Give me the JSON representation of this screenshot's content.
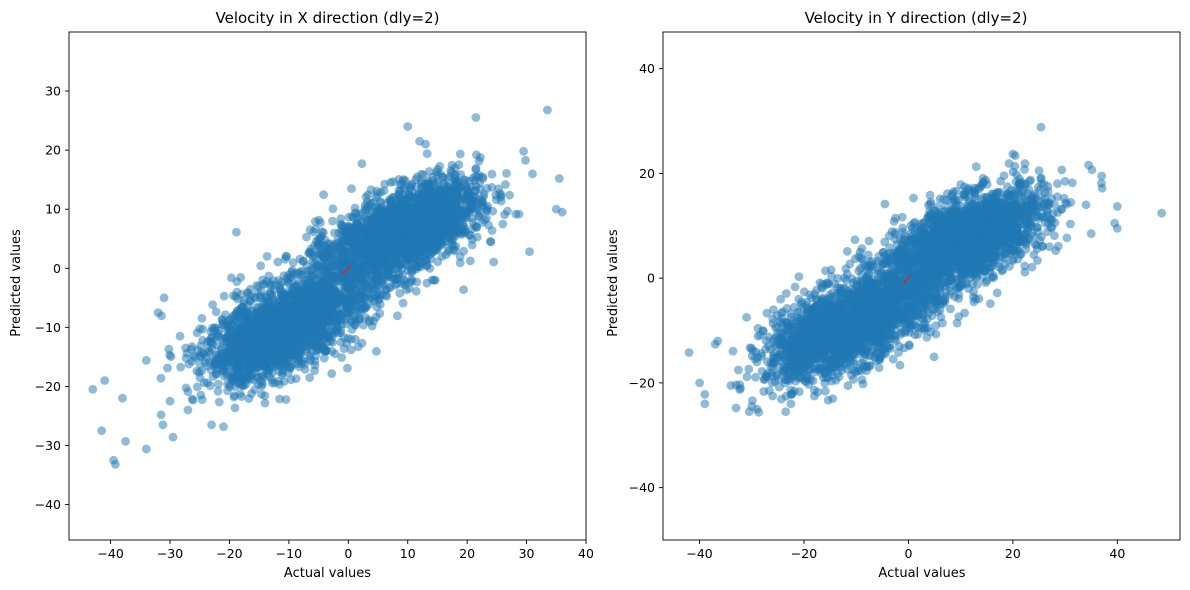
{
  "chart_data": [
    {
      "type": "scatter",
      "title": "Velocity in X direction (dly=2)",
      "xlabel": "Actual values",
      "ylabel": "Predicted values",
      "xlim": [
        -47,
        40
      ],
      "ylim": [
        -46,
        40
      ],
      "xticks": [
        -40,
        -30,
        -20,
        -10,
        0,
        10,
        20,
        30,
        40
      ],
      "yticks": [
        -40,
        -30,
        -20,
        -10,
        0,
        10,
        20,
        30
      ],
      "xtick_labels": [
        "−40",
        "−30",
        "−20",
        "−10",
        "0",
        "10",
        "20",
        "30",
        "40"
      ],
      "ytick_labels": [
        "−40",
        "−30",
        "−20",
        "−10",
        "0",
        "10",
        "20",
        "30"
      ],
      "point_color": "#1f77b4",
      "point_alpha": 0.5,
      "line_color": "#d62728",
      "ref_line": {
        "x": [
          -1,
          0.5
        ],
        "y": [
          -1,
          0.5
        ]
      },
      "clusters": [
        {
          "cx": -12,
          "cy": -11,
          "sx": 6,
          "sy": 4,
          "rho": 0.55,
          "n": 1700
        },
        {
          "cx": 10,
          "cy": 7,
          "sx": 6,
          "sy": 4,
          "rho": 0.55,
          "n": 1700
        },
        {
          "cx": -1,
          "cy": -2,
          "sx": 9,
          "sy": 7,
          "rho": 0.7,
          "n": 900
        }
      ],
      "points": [
        {
          "x": -43,
          "y": -20.5
        },
        {
          "x": -41,
          "y": -19
        },
        {
          "x": -41.5,
          "y": -27.5
        },
        {
          "x": -39.5,
          "y": -32.5
        },
        {
          "x": -39.2,
          "y": -33.2
        },
        {
          "x": -38,
          "y": -22
        },
        {
          "x": -37.5,
          "y": -29.3
        },
        {
          "x": -34,
          "y": -30.6
        },
        {
          "x": -31.5,
          "y": -24.8
        },
        {
          "x": -31.2,
          "y": -26.5
        },
        {
          "x": -30,
          "y": -22.5
        },
        {
          "x": -29.5,
          "y": -28.6
        },
        {
          "x": -31,
          "y": -5
        },
        {
          "x": -32,
          "y": -7.5
        },
        {
          "x": -34,
          "y": -15.6
        },
        {
          "x": -27,
          "y": -24
        },
        {
          "x": -23,
          "y": -26.5
        },
        {
          "x": -21,
          "y": -26.8
        },
        {
          "x": 10,
          "y": 24
        },
        {
          "x": 12,
          "y": 21.5
        },
        {
          "x": 13,
          "y": 21
        },
        {
          "x": 33.5,
          "y": 26.8
        },
        {
          "x": 29.5,
          "y": 19.8
        },
        {
          "x": 31,
          "y": 16
        },
        {
          "x": 35.5,
          "y": 15.2
        },
        {
          "x": 35,
          "y": 10
        },
        {
          "x": 36,
          "y": 9.5
        },
        {
          "x": 30.5,
          "y": 2.8
        },
        {
          "x": 26,
          "y": 7.5
        },
        {
          "x": 24,
          "y": 4.5
        }
      ]
    },
    {
      "type": "scatter",
      "title": "Velocity in Y direction (dly=2)",
      "xlabel": "Actual values",
      "ylabel": "Predicted values",
      "xlim": [
        -47,
        52
      ],
      "ylim": [
        -50,
        47
      ],
      "xticks": [
        -40,
        -20,
        0,
        20,
        40
      ],
      "yticks": [
        -40,
        -20,
        0,
        20,
        40
      ],
      "xtick_labels": [
        "−40",
        "−20",
        "0",
        "20",
        "40"
      ],
      "ytick_labels": [
        "−40",
        "−20",
        "0",
        "20",
        "40"
      ],
      "point_color": "#1f77b4",
      "point_alpha": 0.5,
      "line_color": "#d62728",
      "ref_line": {
        "x": [
          -1,
          0.5
        ],
        "y": [
          -1,
          0.5
        ]
      },
      "clusters": [
        {
          "cx": -13,
          "cy": -10,
          "sx": 7,
          "sy": 4.5,
          "rho": 0.55,
          "n": 1700
        },
        {
          "cx": 12,
          "cy": 8,
          "sx": 7,
          "sy": 4.5,
          "rho": 0.55,
          "n": 1700
        },
        {
          "cx": 0,
          "cy": -1,
          "sx": 10,
          "sy": 7.5,
          "rho": 0.7,
          "n": 900
        }
      ],
      "points": [
        {
          "x": -42,
          "y": -14.2
        },
        {
          "x": -40,
          "y": -20
        },
        {
          "x": -39,
          "y": -24
        },
        {
          "x": -39,
          "y": -22.2
        },
        {
          "x": -37,
          "y": -12.6
        },
        {
          "x": -36.5,
          "y": -12
        },
        {
          "x": -34,
          "y": -20.5
        },
        {
          "x": -33,
          "y": -24.8
        },
        {
          "x": -30.5,
          "y": -25.5
        },
        {
          "x": -30,
          "y": -24.5
        },
        {
          "x": -29,
          "y": -25
        },
        {
          "x": -26,
          "y": -22.5
        },
        {
          "x": -23.5,
          "y": -25.5
        },
        {
          "x": -22.5,
          "y": -24
        },
        {
          "x": -18,
          "y": -22.5
        },
        {
          "x": -14.5,
          "y": -23
        },
        {
          "x": -31,
          "y": -7.5
        },
        {
          "x": -26,
          "y": -7.8
        },
        {
          "x": -21,
          "y": -4
        },
        {
          "x": -29,
          "y": -16
        },
        {
          "x": 48.5,
          "y": 12.4
        },
        {
          "x": 20,
          "y": 23.7
        },
        {
          "x": 13,
          "y": 21.3
        },
        {
          "x": 34.5,
          "y": 21.6
        },
        {
          "x": 37,
          "y": 19.5
        },
        {
          "x": 40,
          "y": 13.7
        },
        {
          "x": 39.5,
          "y": 10.5
        },
        {
          "x": 40,
          "y": 9.5
        },
        {
          "x": 35,
          "y": 8.5
        },
        {
          "x": 30,
          "y": 18.5
        },
        {
          "x": 28,
          "y": 14
        },
        {
          "x": 34,
          "y": 14
        },
        {
          "x": 27,
          "y": 6
        },
        {
          "x": 24,
          "y": 4.5
        },
        {
          "x": 22.5,
          "y": 5.5
        }
      ]
    }
  ]
}
